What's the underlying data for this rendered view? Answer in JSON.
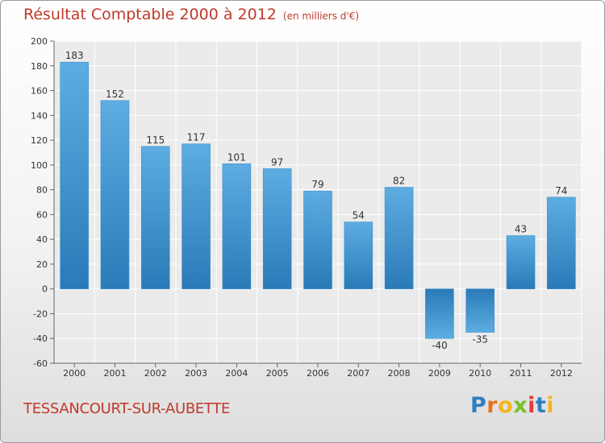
{
  "header": {
    "title": "Résultat Comptable 2000 à 2012",
    "subtitle": "(en milliers d'€)"
  },
  "footer": {
    "commune": "TESSANCOURT-SUR-AUBETTE",
    "logo_letters": [
      {
        "char": "P",
        "color": "#2f7fc1"
      },
      {
        "char": "r",
        "color": "#e8731d"
      },
      {
        "char": "o",
        "color": "#f2b51c"
      },
      {
        "char": "x",
        "color": "#7bbf2a"
      },
      {
        "char": "i",
        "color": "#e23c3c"
      },
      {
        "char": "t",
        "color": "#2f7fc1"
      },
      {
        "char": "i",
        "color": "#f2b51c"
      }
    ]
  },
  "colors": {
    "title": "#c0392b",
    "bar_light": "#5dade2",
    "bar_dark": "#2a7ab8"
  },
  "chart_data": {
    "type": "bar",
    "categories": [
      "2000",
      "2001",
      "2002",
      "2003",
      "2004",
      "2005",
      "2006",
      "2007",
      "2008",
      "2009",
      "2010",
      "2011",
      "2012"
    ],
    "values": [
      183,
      152,
      115,
      117,
      101,
      97,
      79,
      54,
      82,
      -40,
      -35,
      43,
      74
    ],
    "ylim": [
      -60,
      200
    ],
    "yticks": [
      200,
      180,
      160,
      140,
      120,
      100,
      80,
      60,
      40,
      20,
      0,
      -20,
      -40,
      -60
    ],
    "grid": true
  }
}
